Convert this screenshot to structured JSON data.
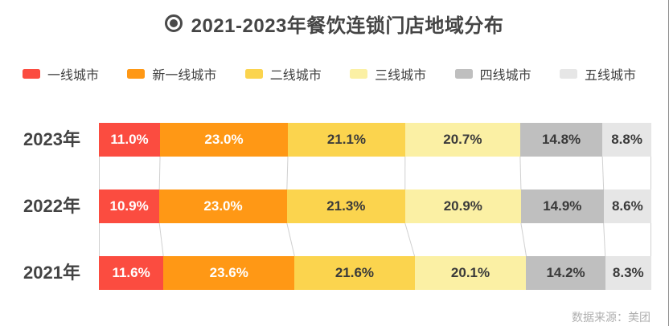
{
  "title": "2021-2023年餐饮连锁门店地域分布",
  "source": "数据来源：美团",
  "colors": {
    "title_text": "#454545",
    "row_label_text": "#434343",
    "legend_text": "#3f3f3f",
    "connector_line": "#d0d0d0",
    "right_edge_line": "#8c8c8c",
    "source_text": "#afafaf"
  },
  "chart_data": {
    "type": "bar",
    "stacked": true,
    "orientation": "horizontal",
    "unit": "%",
    "legend_position": "top",
    "value_labels": "inside",
    "axes_visible": false,
    "categories": [
      "2023年",
      "2022年",
      "2021年"
    ],
    "series": [
      {
        "name": "一线城市",
        "color": "#fb4c40",
        "text_color": "#ffffff",
        "values": [
          11.0,
          10.9,
          11.6
        ]
      },
      {
        "name": "新一线城市",
        "color": "#ff9815",
        "text_color": "#ffffff",
        "values": [
          23.0,
          23.0,
          23.6
        ]
      },
      {
        "name": "二线城市",
        "color": "#fbd44e",
        "text_color": "#3a3a3a",
        "values": [
          21.1,
          21.3,
          21.6
        ]
      },
      {
        "name": "三线城市",
        "color": "#fbf0a4",
        "text_color": "#3a3a3a",
        "values": [
          20.7,
          20.9,
          20.1
        ]
      },
      {
        "name": "四线城市",
        "color": "#bfbfbf",
        "text_color": "#3a3a3a",
        "values": [
          14.8,
          14.9,
          14.2
        ]
      },
      {
        "name": "五线城市",
        "color": "#e6e6e6",
        "text_color": "#3a3a3a",
        "values": [
          8.8,
          8.6,
          8.3
        ]
      }
    ]
  }
}
